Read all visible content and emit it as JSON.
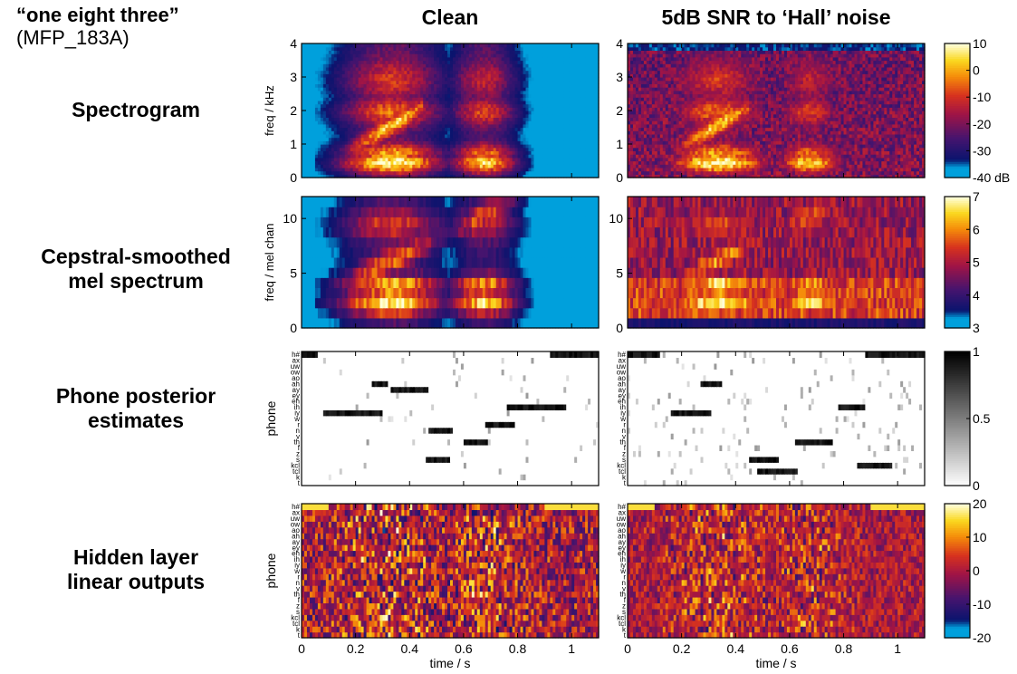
{
  "utterance": {
    "quote": "“one eight three”",
    "id": "(MFP_183A)"
  },
  "column_titles": [
    "Clean",
    "5dB SNR to ‘Hall’ noise"
  ],
  "row_labels": [
    {
      "line1": "Spectrogram",
      "line2": ""
    },
    {
      "line1": "Cepstral-smoothed",
      "line2": "mel spectrum"
    },
    {
      "line1": "Phone posterior",
      "line2": "estimates"
    },
    {
      "line1": "Hidden layer",
      "line2": "linear outputs"
    }
  ],
  "chart_data": [
    {
      "type": "heatmap",
      "row": "Spectrogram",
      "ylabel": "freq / kHz",
      "yticks": [
        0,
        1,
        2,
        3,
        4
      ],
      "ylim": [
        0,
        4
      ],
      "xlim": [
        0,
        1.1
      ],
      "colorbar": {
        "ticks": [
          "10",
          "0",
          "-10",
          "-20",
          "-30",
          "-40 dB"
        ],
        "range": [
          -40,
          10
        ],
        "colormap": "hot-on-blue"
      },
      "panels": [
        "Clean",
        "5dB SNR to ‘Hall’ noise"
      ]
    },
    {
      "type": "heatmap",
      "row": "Cepstral-smoothed mel spectrum",
      "ylabel": "freq / mel chan",
      "yticks": [
        0,
        5,
        10
      ],
      "ylim": [
        0,
        12
      ],
      "xlim": [
        0,
        1.1
      ],
      "colorbar": {
        "ticks": [
          "7",
          "6",
          "5",
          "4",
          "3"
        ],
        "range": [
          3,
          7
        ],
        "colormap": "hot-on-blue"
      },
      "panels": [
        "Clean",
        "5dB SNR to ‘Hall’ noise"
      ]
    },
    {
      "type": "heatmap",
      "row": "Phone posterior estimates",
      "ylabel": "phone",
      "phone_labels": [
        "h#",
        "ax",
        "uw",
        "ow",
        "ao",
        "ah",
        "ay",
        "ey",
        "eh",
        "ih",
        "iy",
        "w",
        "r",
        "n",
        "v",
        "th",
        "f",
        "z",
        "s",
        "kcl",
        "tcl",
        "k",
        "t"
      ],
      "xlim": [
        0,
        1.1
      ],
      "colorbar": {
        "ticks": [
          "1",
          "0.5",
          "0"
        ],
        "range": [
          0,
          1
        ],
        "colormap": "gray-reversed"
      },
      "panels": [
        "Clean",
        "5dB SNR to ‘Hall’ noise"
      ]
    },
    {
      "type": "heatmap",
      "row": "Hidden layer linear outputs",
      "ylabel": "phone",
      "phone_labels": [
        "h#",
        "ax",
        "uw",
        "ow",
        "ao",
        "ah",
        "ay",
        "ey",
        "eh",
        "ih",
        "iy",
        "w",
        "r",
        "n",
        "v",
        "th",
        "f",
        "z",
        "s",
        "kcl",
        "tcl",
        "k",
        "t"
      ],
      "xlabel": "time / s",
      "xticks": [
        "0",
        "0.2",
        "0.4",
        "0.6",
        "0.8",
        "1"
      ],
      "xtick_values": [
        0,
        0.2,
        0.4,
        0.6,
        0.8,
        1.0
      ],
      "xlim": [
        0,
        1.1
      ],
      "colorbar": {
        "ticks": [
          "20",
          "10",
          "0",
          "-10",
          "-20"
        ],
        "range": [
          -20,
          20
        ],
        "colormap": "hot-on-blue"
      },
      "panels": [
        "Clean",
        "5dB SNR to ‘Hall’ noise"
      ]
    }
  ]
}
